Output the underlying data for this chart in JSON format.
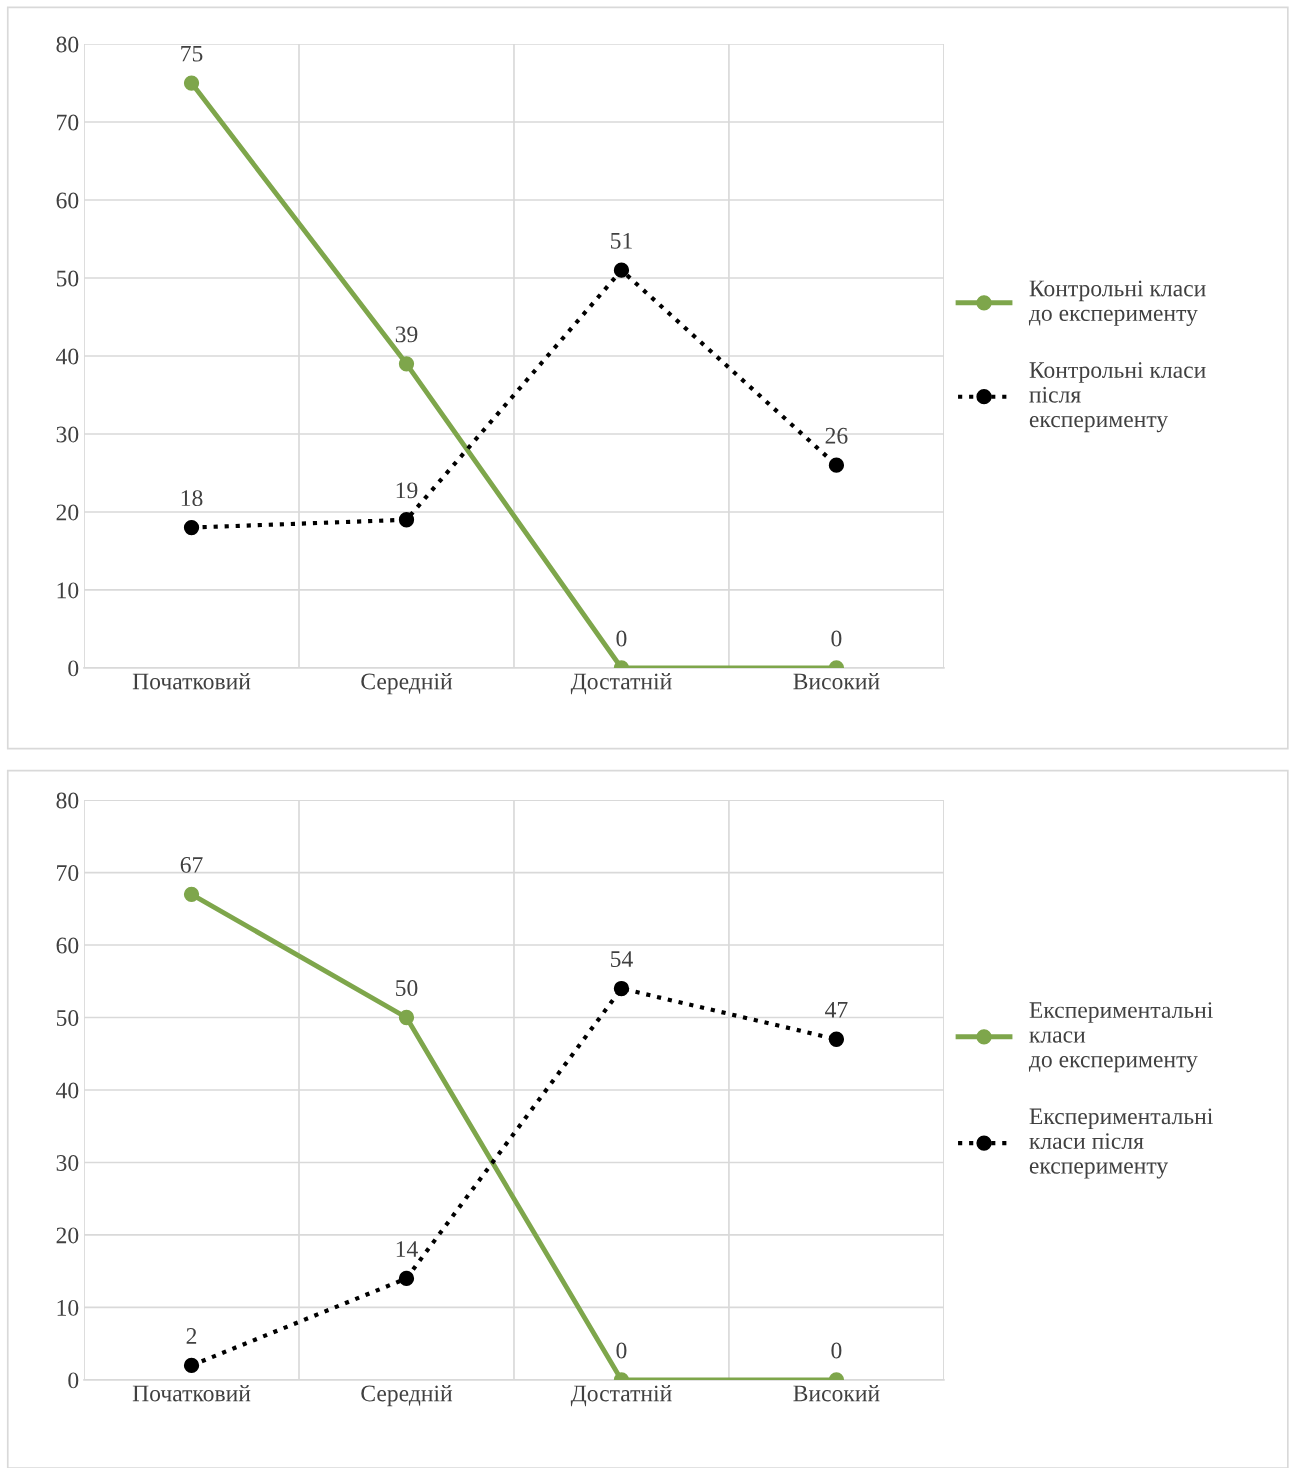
{
  "chart_data": [
    {
      "type": "line",
      "categories": [
        "Початковий",
        "Середній",
        "Достатній",
        "Високий"
      ],
      "series": [
        {
          "name": "Контрольні класи\nдо експерименту",
          "color": "#7ea64b",
          "values": [
            75,
            39,
            0,
            0
          ],
          "marker": "circle",
          "line_style": "solid"
        },
        {
          "name": "Контрольні класи\nпісля\nексперименту",
          "color": "#000000",
          "values": [
            18,
            19,
            51,
            26
          ],
          "marker": "circle",
          "line_style": "dotted"
        }
      ],
      "ylim": [
        0,
        80
      ],
      "yticks": [
        0,
        10,
        20,
        30,
        40,
        50,
        60,
        70,
        80
      ],
      "grid": true,
      "legend": "right",
      "data_labels": true
    },
    {
      "type": "line",
      "categories": [
        "Початковий",
        "Середній",
        "Достатній",
        "Високий"
      ],
      "series": [
        {
          "name": "Експериментальні\nкласи\nдо експерименту",
          "color": "#7ea64b",
          "values": [
            67,
            50,
            0,
            0
          ],
          "marker": "circle",
          "line_style": "solid"
        },
        {
          "name": "Експериментальні\nкласи після\nексперименту",
          "color": "#000000",
          "values": [
            2,
            14,
            54,
            47
          ],
          "marker": "circle",
          "line_style": "dotted"
        }
      ],
      "ylim": [
        0,
        80
      ],
      "yticks": [
        0,
        10,
        20,
        30,
        40,
        50,
        60,
        70,
        80
      ],
      "grid": true,
      "legend": "right",
      "data_labels": true
    }
  ]
}
